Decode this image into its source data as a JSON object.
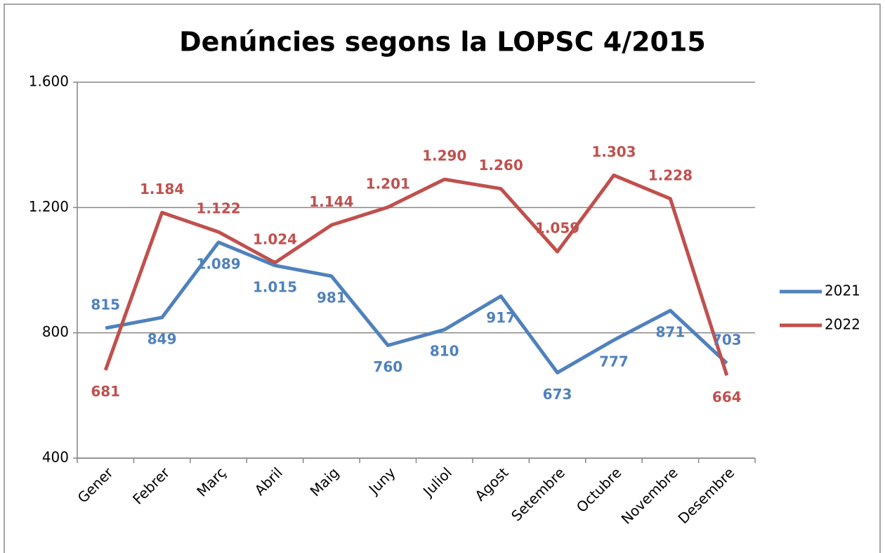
{
  "chart_data": {
    "type": "line",
    "title": "Denúncies segons la LOPSC 4/2015",
    "categories": [
      "Gener",
      "Febrer",
      "Març",
      "Abril",
      "Maig",
      "Juny",
      "Juliol",
      "Agost",
      "Setembre",
      "Octubre",
      "Novembre",
      "Desembre"
    ],
    "series": [
      {
        "name": "2021",
        "color": "#4f81bd",
        "values": [
          815,
          849,
          1089,
          1015,
          981,
          760,
          810,
          917,
          673,
          777,
          871,
          703
        ],
        "value_labels": [
          "815",
          "849",
          "1.089",
          "1.015",
          "981",
          "760",
          "810",
          "917",
          "673",
          "777",
          "871",
          "703"
        ]
      },
      {
        "name": "2022",
        "color": "#c0504d",
        "values": [
          681,
          1184,
          1122,
          1024,
          1144,
          1201,
          1290,
          1260,
          1059,
          1303,
          1228,
          664
        ],
        "value_labels": [
          "681",
          "1.184",
          "1.122",
          "1.024",
          "1.144",
          "1.201",
          "1.290",
          "1.260",
          "1.059",
          "1.303",
          "1.228",
          "664"
        ]
      }
    ],
    "ylim": [
      400,
      1600
    ],
    "yticks": [
      400,
      800,
      {
        "value": 1200,
        "label": "1.200"
      },
      {
        "value": 1600,
        "label": "1.600"
      }
    ],
    "grid": true,
    "legend": "right"
  }
}
